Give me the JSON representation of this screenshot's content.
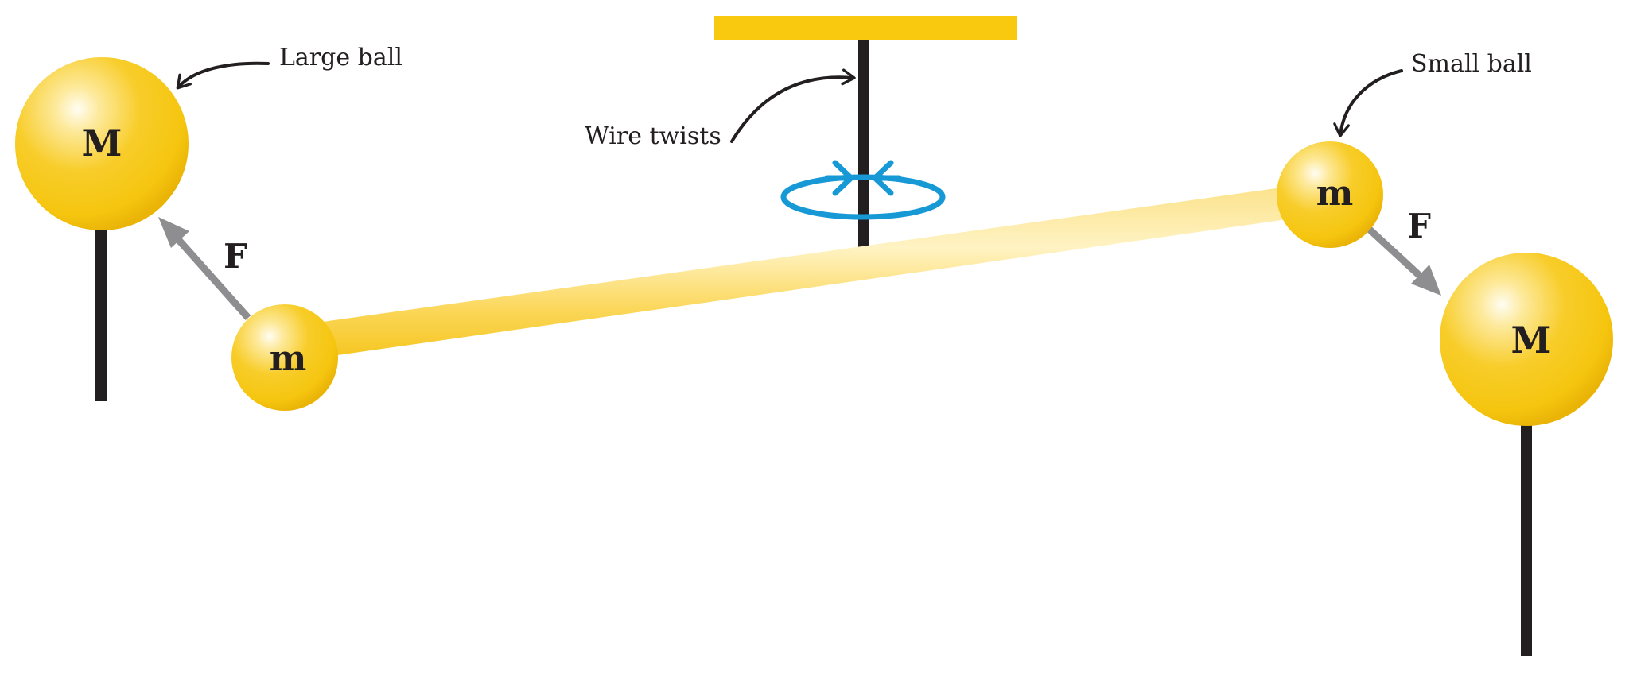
{
  "labels": {
    "large_ball": "Large ball",
    "small_ball": "Small ball",
    "wire_twists": "Wire twists"
  },
  "large_mass_symbol": "M",
  "small_mass_symbol": "m",
  "force_symbol": "F",
  "colors": {
    "ball": "#f7c818",
    "ball_highlight": "#fff9dc",
    "ball_shadow": "#e6b000",
    "mount_bar": "#f8c90f",
    "beam": "#fad24a",
    "beam_highlight": "#fff0b8",
    "rod": "#231f20",
    "force_arrow": "#8e8e90",
    "twist_arrows": "#1799d6",
    "text": "#231f20"
  },
  "icons": [
    "curved-pointer-arrow",
    "rotation-ellipse-arrow",
    "force-arrow"
  ]
}
